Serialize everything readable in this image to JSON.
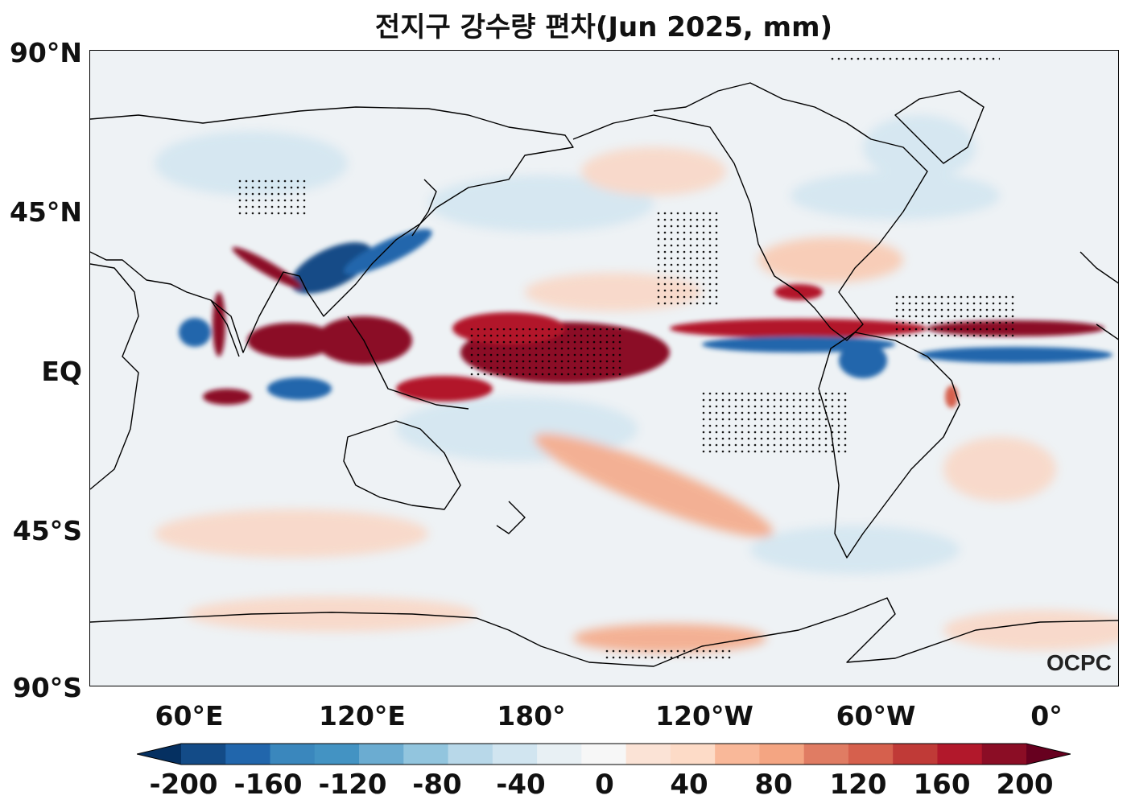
{
  "title": "전지구 강수량 편차(Jun 2025, mm)",
  "latitude_labels": [
    "90°N",
    "45°N",
    "EQ",
    "45°S",
    "90°S"
  ],
  "longitude_labels": [
    "60°E",
    "120°E",
    "180°",
    "120°W",
    "60°W",
    "0°"
  ],
  "colorbar": {
    "tick_labels": [
      "-200",
      "-160",
      "-120",
      "-80",
      "-40",
      "0",
      "40",
      "80",
      "120",
      "160",
      "200"
    ],
    "min": -200,
    "max": 200,
    "step": 20,
    "colors": [
      "#053061",
      "#134b87",
      "#2166ac",
      "#3a87bd",
      "#4393c3",
      "#6bacd1",
      "#92c5de",
      "#b8d8e9",
      "#d1e5f0",
      "#e8f0f4",
      "#f7f7f7",
      "#fbe3d6",
      "#fddbc7",
      "#f9b899",
      "#f4a582",
      "#e07c63",
      "#d6604d",
      "#c03a37",
      "#b2182b",
      "#8b0d25",
      "#67001f"
    ]
  },
  "watermark": "OCPC",
  "colors": {
    "ocean_background": "#eef2f5",
    "land_outline": "#000000",
    "positive_anomaly": "#8b0d25",
    "negative_anomaly": "#134b87"
  }
}
